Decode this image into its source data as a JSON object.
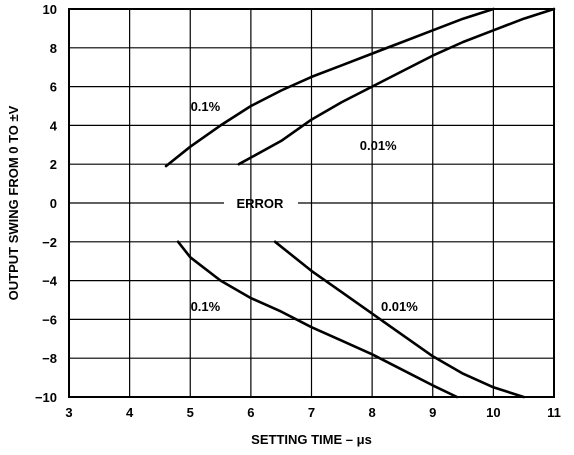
{
  "chart_data": {
    "type": "line",
    "title": "",
    "xlabel": "SETTING TIME – μs",
    "ylabel": "OUTPUT SWING FROM 0 TO ±V",
    "xlim": [
      3,
      11
    ],
    "ylim": [
      -10,
      10
    ],
    "xticks": [
      3,
      4,
      5,
      6,
      7,
      8,
      9,
      10,
      11
    ],
    "yticks": [
      10,
      8,
      6,
      4,
      2,
      0,
      -2,
      -4,
      -6,
      -8,
      -10
    ],
    "ytick_labels": [
      "10",
      "8",
      "6",
      "4",
      "2",
      "0",
      "−2",
      "−4",
      "−6",
      "−8",
      "−10"
    ],
    "grid": true,
    "series": [
      {
        "name": "0.1% (positive)",
        "x": [
          4.6,
          5.0,
          5.5,
          6.0,
          6.5,
          7.0,
          7.5,
          8.0,
          8.5,
          9.0,
          9.5,
          10.0
        ],
        "y": [
          1.9,
          2.9,
          4.0,
          5.0,
          5.8,
          6.5,
          7.1,
          7.7,
          8.3,
          8.9,
          9.5,
          10.0
        ]
      },
      {
        "name": "0.01% (positive)",
        "x": [
          5.8,
          6.5,
          7.0,
          7.5,
          8.0,
          8.5,
          9.0,
          9.5,
          10.0,
          10.5,
          11.0
        ],
        "y": [
          2.0,
          3.2,
          4.3,
          5.2,
          6.0,
          6.8,
          7.6,
          8.3,
          8.9,
          9.5,
          10.0
        ]
      },
      {
        "name": "0.1% (negative)",
        "x": [
          4.8,
          5.0,
          5.5,
          6.0,
          6.5,
          7.0,
          7.5,
          8.0,
          8.5,
          9.0,
          9.4
        ],
        "y": [
          -2.0,
          -2.8,
          -4.0,
          -4.9,
          -5.6,
          -6.4,
          -7.1,
          -7.8,
          -8.6,
          -9.4,
          -10.0
        ]
      },
      {
        "name": "0.01% (negative)",
        "x": [
          6.4,
          7.0,
          7.5,
          8.0,
          8.5,
          9.0,
          9.5,
          10.0,
          10.5
        ],
        "y": [
          -2.0,
          -3.5,
          -4.6,
          -5.7,
          -6.8,
          -7.9,
          -8.8,
          -9.5,
          -10.0
        ]
      }
    ],
    "annotations": [
      {
        "text": "0.1%",
        "x": 5.25,
        "y": 5.0
      },
      {
        "text": "0.01%",
        "x": 8.1,
        "y": 3.0
      },
      {
        "text": "ERROR",
        "x": 6.15,
        "y": 0.0
      },
      {
        "text": "0.1%",
        "x": 5.25,
        "y": -5.3
      },
      {
        "text": "0.01%",
        "x": 8.45,
        "y": -5.3
      }
    ]
  }
}
